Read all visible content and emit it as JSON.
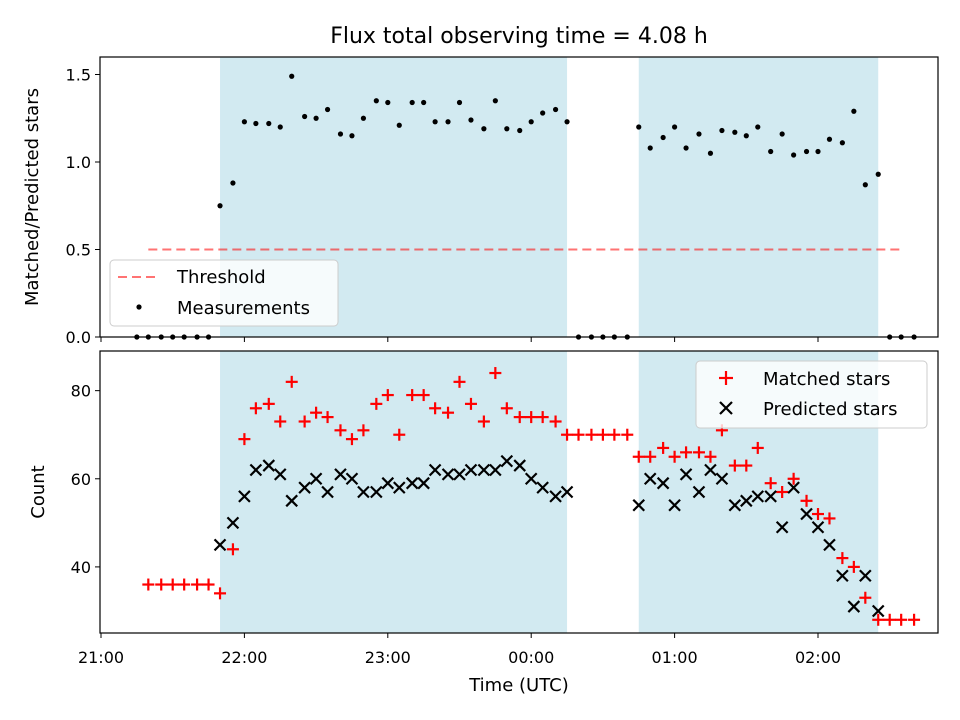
{
  "figure": {
    "title": "Flux total observing time = 4.08 h",
    "xlabel": "Time (UTC)",
    "xticks": [
      "21:00",
      "22:00",
      "23:00",
      "00:00",
      "01:00",
      "02:00"
    ]
  },
  "colors": {
    "shade": "#add8e6",
    "threshold": "#ff0000",
    "measurements": "#000000",
    "matched": "#ff0000",
    "predicted": "#000000"
  },
  "chart_data": [
    {
      "type": "scatter",
      "panel": "top",
      "ylabel": "Matched/Predicted stars",
      "ylim": [
        0,
        1.6
      ],
      "yticks": [
        "0.0",
        "0.5",
        "1.0",
        "1.5"
      ],
      "x_unit": "hours since 21:00 UTC",
      "shaded_intervals": [
        [
          0.83,
          3.25
        ],
        [
          3.75,
          5.42
        ]
      ],
      "legend": {
        "position": "lower-left",
        "entries": [
          "Threshold",
          "Measurements"
        ]
      },
      "threshold": {
        "name": "Threshold",
        "value": 0.5,
        "x_range": [
          0.33,
          5.58
        ]
      },
      "measurements": {
        "name": "Measurements",
        "points": [
          [
            0.25,
            0
          ],
          [
            0.33,
            0
          ],
          [
            0.42,
            0
          ],
          [
            0.5,
            0
          ],
          [
            0.58,
            0
          ],
          [
            0.67,
            0
          ],
          [
            0.75,
            0
          ],
          [
            0.83,
            0.75
          ],
          [
            0.92,
            0.88
          ],
          [
            1.0,
            1.23
          ],
          [
            1.08,
            1.22
          ],
          [
            1.17,
            1.22
          ],
          [
            1.25,
            1.2
          ],
          [
            1.33,
            1.49
          ],
          [
            1.42,
            1.26
          ],
          [
            1.5,
            1.25
          ],
          [
            1.58,
            1.3
          ],
          [
            1.67,
            1.16
          ],
          [
            1.75,
            1.15
          ],
          [
            1.83,
            1.25
          ],
          [
            1.92,
            1.35
          ],
          [
            2.0,
            1.34
          ],
          [
            2.08,
            1.21
          ],
          [
            2.17,
            1.34
          ],
          [
            2.25,
            1.34
          ],
          [
            2.33,
            1.23
          ],
          [
            2.42,
            1.23
          ],
          [
            2.5,
            1.34
          ],
          [
            2.58,
            1.24
          ],
          [
            2.67,
            1.19
          ],
          [
            2.75,
            1.35
          ],
          [
            2.83,
            1.19
          ],
          [
            2.92,
            1.18
          ],
          [
            3.0,
            1.23
          ],
          [
            3.08,
            1.28
          ],
          [
            3.17,
            1.3
          ],
          [
            3.25,
            1.23
          ],
          [
            3.33,
            0
          ],
          [
            3.42,
            0
          ],
          [
            3.5,
            0
          ],
          [
            3.58,
            0
          ],
          [
            3.67,
            0
          ],
          [
            3.75,
            1.2
          ],
          [
            3.83,
            1.08
          ],
          [
            3.92,
            1.14
          ],
          [
            4.0,
            1.2
          ],
          [
            4.08,
            1.08
          ],
          [
            4.17,
            1.16
          ],
          [
            4.25,
            1.05
          ],
          [
            4.33,
            1.18
          ],
          [
            4.42,
            1.17
          ],
          [
            4.5,
            1.15
          ],
          [
            4.58,
            1.2
          ],
          [
            4.67,
            1.06
          ],
          [
            4.75,
            1.16
          ],
          [
            4.83,
            1.04
          ],
          [
            4.92,
            1.06
          ],
          [
            5.0,
            1.06
          ],
          [
            5.08,
            1.13
          ],
          [
            5.17,
            1.11
          ],
          [
            5.25,
            1.29
          ],
          [
            5.33,
            0.87
          ],
          [
            5.42,
            0.93
          ],
          [
            5.5,
            0
          ],
          [
            5.58,
            0
          ],
          [
            5.67,
            0
          ]
        ]
      }
    },
    {
      "type": "scatter",
      "panel": "bottom",
      "ylabel": "Count",
      "ylim": [
        25,
        89
      ],
      "yticks": [
        "40",
        "60",
        "80"
      ],
      "x_unit": "hours since 21:00 UTC",
      "legend": {
        "position": "upper-right",
        "entries": [
          "Matched stars",
          "Predicted stars"
        ]
      },
      "series": [
        {
          "name": "Matched stars",
          "marker": "+",
          "points": [
            [
              0.33,
              36
            ],
            [
              0.42,
              36
            ],
            [
              0.5,
              36
            ],
            [
              0.58,
              36
            ],
            [
              0.67,
              36
            ],
            [
              0.75,
              36
            ],
            [
              0.83,
              34
            ],
            [
              0.92,
              44
            ],
            [
              1.0,
              69
            ],
            [
              1.08,
              76
            ],
            [
              1.17,
              77
            ],
            [
              1.25,
              73
            ],
            [
              1.33,
              82
            ],
            [
              1.42,
              73
            ],
            [
              1.5,
              75
            ],
            [
              1.58,
              74
            ],
            [
              1.67,
              71
            ],
            [
              1.75,
              69
            ],
            [
              1.83,
              71
            ],
            [
              1.92,
              77
            ],
            [
              2.0,
              79
            ],
            [
              2.08,
              70
            ],
            [
              2.17,
              79
            ],
            [
              2.25,
              79
            ],
            [
              2.33,
              76
            ],
            [
              2.42,
              75
            ],
            [
              2.5,
              82
            ],
            [
              2.58,
              77
            ],
            [
              2.67,
              73
            ],
            [
              2.75,
              84
            ],
            [
              2.83,
              76
            ],
            [
              2.92,
              74
            ],
            [
              3.0,
              74
            ],
            [
              3.08,
              74
            ],
            [
              3.17,
              73
            ],
            [
              3.25,
              70
            ],
            [
              3.33,
              70
            ],
            [
              3.42,
              70
            ],
            [
              3.5,
              70
            ],
            [
              3.58,
              70
            ],
            [
              3.67,
              70
            ],
            [
              3.75,
              65
            ],
            [
              3.83,
              65
            ],
            [
              3.92,
              67
            ],
            [
              4.0,
              65
            ],
            [
              4.08,
              66
            ],
            [
              4.17,
              66
            ],
            [
              4.25,
              65
            ],
            [
              4.33,
              71
            ],
            [
              4.42,
              63
            ],
            [
              4.5,
              63
            ],
            [
              4.58,
              67
            ],
            [
              4.67,
              59
            ],
            [
              4.75,
              57
            ],
            [
              4.83,
              60
            ],
            [
              4.92,
              55
            ],
            [
              5.0,
              52
            ],
            [
              5.08,
              51
            ],
            [
              5.17,
              42
            ],
            [
              5.25,
              40
            ],
            [
              5.33,
              33
            ],
            [
              5.42,
              28
            ],
            [
              5.5,
              28
            ],
            [
              5.58,
              28
            ],
            [
              5.67,
              28
            ]
          ]
        },
        {
          "name": "Predicted stars",
          "marker": "x",
          "points": [
            [
              0.83,
              45
            ],
            [
              0.92,
              50
            ],
            [
              1.0,
              56
            ],
            [
              1.08,
              62
            ],
            [
              1.17,
              63
            ],
            [
              1.25,
              61
            ],
            [
              1.33,
              55
            ],
            [
              1.42,
              58
            ],
            [
              1.5,
              60
            ],
            [
              1.58,
              57
            ],
            [
              1.67,
              61
            ],
            [
              1.75,
              60
            ],
            [
              1.83,
              57
            ],
            [
              1.92,
              57
            ],
            [
              2.0,
              59
            ],
            [
              2.08,
              58
            ],
            [
              2.17,
              59
            ],
            [
              2.25,
              59
            ],
            [
              2.33,
              62
            ],
            [
              2.42,
              61
            ],
            [
              2.5,
              61
            ],
            [
              2.58,
              62
            ],
            [
              2.67,
              62
            ],
            [
              2.75,
              62
            ],
            [
              2.83,
              64
            ],
            [
              2.92,
              63
            ],
            [
              3.0,
              60
            ],
            [
              3.08,
              58
            ],
            [
              3.17,
              56
            ],
            [
              3.25,
              57
            ],
            [
              3.75,
              54
            ],
            [
              3.83,
              60
            ],
            [
              3.92,
              59
            ],
            [
              4.0,
              54
            ],
            [
              4.08,
              61
            ],
            [
              4.17,
              57
            ],
            [
              4.25,
              62
            ],
            [
              4.33,
              60
            ],
            [
              4.42,
              54
            ],
            [
              4.5,
              55
            ],
            [
              4.58,
              56
            ],
            [
              4.67,
              56
            ],
            [
              4.75,
              49
            ],
            [
              4.83,
              58
            ],
            [
              4.92,
              52
            ],
            [
              5.0,
              49
            ],
            [
              5.08,
              45
            ],
            [
              5.17,
              38
            ],
            [
              5.25,
              31
            ],
            [
              5.33,
              38
            ],
            [
              5.42,
              30
            ]
          ]
        }
      ]
    }
  ]
}
